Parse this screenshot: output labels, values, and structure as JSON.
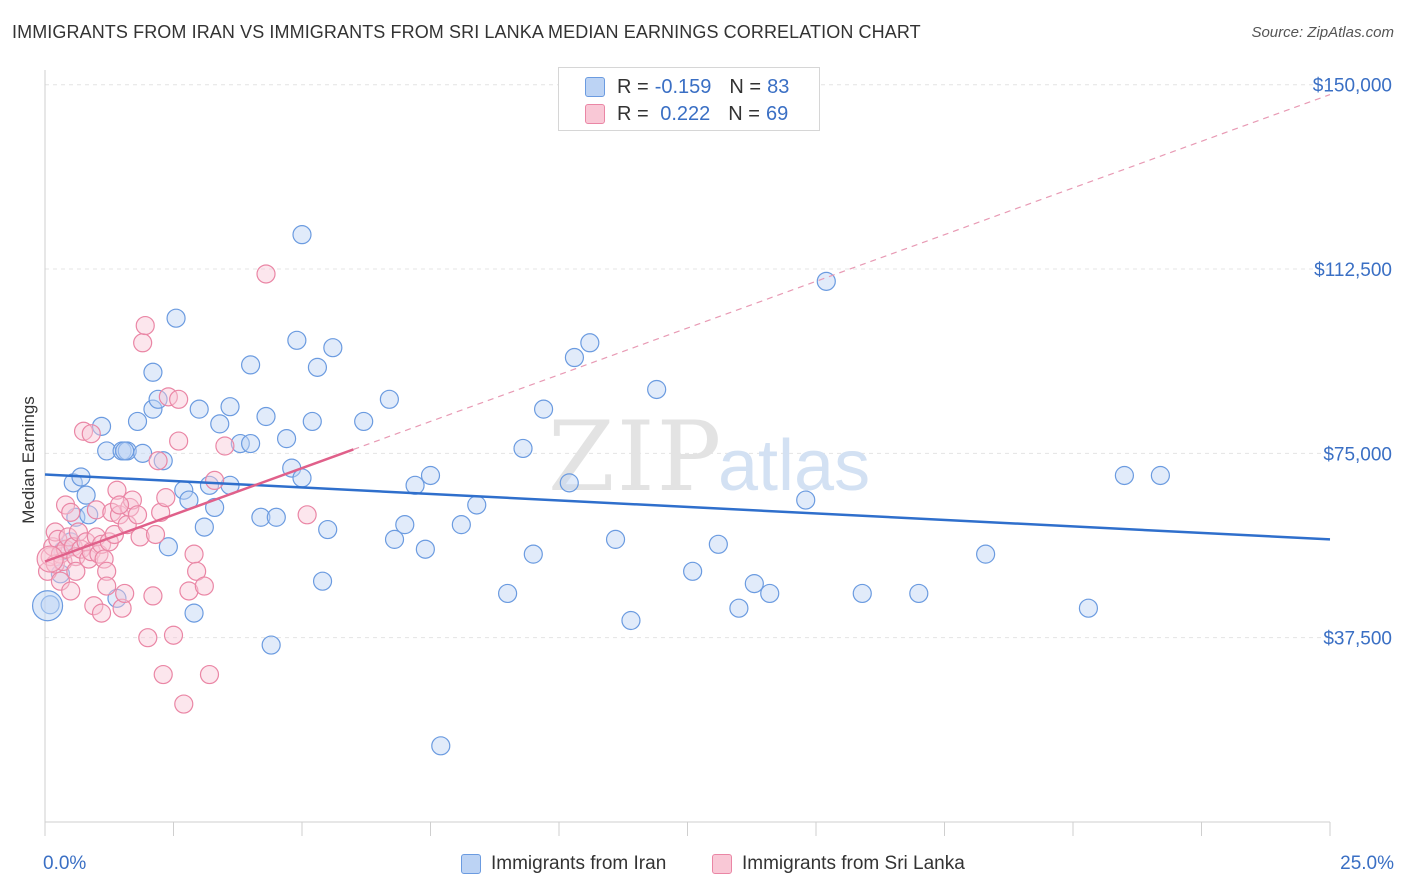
{
  "title": "IMMIGRANTS FROM IRAN VS IMMIGRANTS FROM SRI LANKA MEDIAN EARNINGS CORRELATION CHART",
  "source": "Source: ZipAtlas.com",
  "watermark": {
    "zip": "ZIP",
    "atlas": "atlas"
  },
  "legend": {
    "series": [
      {
        "r_label": "R =",
        "r_value": "-0.159",
        "n_label": "N =",
        "n_value": "83",
        "color": "#6b9be0",
        "fill": "#bcd3f4"
      },
      {
        "r_label": "R =",
        "r_value": " 0.222",
        "n_label": "N =",
        "n_value": "69",
        "color": "#ea86a5",
        "fill": "#f9c8d6"
      }
    ]
  },
  "bottom_legend": [
    "Immigrants from Iran",
    "Immigrants from Sri Lanka"
  ],
  "chart_data": {
    "type": "scatter",
    "title": "IMMIGRANTS FROM IRAN VS IMMIGRANTS FROM SRI LANKA MEDIAN EARNINGS CORRELATION CHART",
    "xlabel": "",
    "ylabel": "Median Earnings",
    "xlim": [
      0,
      25
    ],
    "ylim": [
      0,
      153000
    ],
    "x_tick_labels": [
      "0.0%",
      "25.0%"
    ],
    "y_ticks": [
      37500,
      75000,
      112500,
      150000
    ],
    "y_tick_labels": [
      "$37,500",
      "$75,000",
      "$112,500",
      "$150,000"
    ],
    "grid": true,
    "series": [
      {
        "name": "Immigrants from Iran",
        "color": "#6b9be0",
        "trend": {
          "x": [
            0,
            25
          ],
          "y": [
            70700,
            57500
          ],
          "style": "solid"
        },
        "points": [
          [
            0.1,
            44200
          ],
          [
            0.3,
            50500
          ],
          [
            0.35,
            55200
          ],
          [
            0.5,
            57000
          ],
          [
            0.55,
            69000
          ],
          [
            0.6,
            62000
          ],
          [
            0.7,
            70200
          ],
          [
            0.8,
            66500
          ],
          [
            0.85,
            62500
          ],
          [
            1.1,
            80500
          ],
          [
            1.2,
            75500
          ],
          [
            1.4,
            45500
          ],
          [
            1.5,
            75500
          ],
          [
            1.6,
            75500
          ],
          [
            1.8,
            81500
          ],
          [
            1.9,
            75000
          ],
          [
            2.1,
            84000
          ],
          [
            2.1,
            91500
          ],
          [
            2.2,
            86000
          ],
          [
            2.3,
            73500
          ],
          [
            2.4,
            56000
          ],
          [
            2.55,
            102500
          ],
          [
            2.7,
            67500
          ],
          [
            2.8,
            65500
          ],
          [
            2.9,
            42500
          ],
          [
            3.0,
            84000
          ],
          [
            3.1,
            60000
          ],
          [
            3.2,
            68500
          ],
          [
            3.3,
            64000
          ],
          [
            3.4,
            81000
          ],
          [
            3.6,
            68500
          ],
          [
            3.6,
            84500
          ],
          [
            3.8,
            77000
          ],
          [
            4.0,
            93000
          ],
          [
            4.0,
            77000
          ],
          [
            4.2,
            62000
          ],
          [
            4.3,
            82500
          ],
          [
            4.4,
            36000
          ],
          [
            4.5,
            62000
          ],
          [
            4.7,
            78000
          ],
          [
            4.8,
            72000
          ],
          [
            4.9,
            98000
          ],
          [
            5.0,
            70000
          ],
          [
            5.0,
            119500
          ],
          [
            5.2,
            81500
          ],
          [
            5.3,
            92500
          ],
          [
            5.4,
            49000
          ],
          [
            5.5,
            59500
          ],
          [
            5.6,
            96500
          ],
          [
            6.2,
            81500
          ],
          [
            6.7,
            86000
          ],
          [
            6.8,
            57500
          ],
          [
            7.0,
            60500
          ],
          [
            7.2,
            68500
          ],
          [
            7.4,
            55500
          ],
          [
            7.5,
            70500
          ],
          [
            8.1,
            60500
          ],
          [
            8.4,
            64500
          ],
          [
            9.0,
            46500
          ],
          [
            9.3,
            76000
          ],
          [
            9.5,
            54500
          ],
          [
            9.7,
            84000
          ],
          [
            10.2,
            69000
          ],
          [
            10.3,
            94500
          ],
          [
            10.6,
            97500
          ],
          [
            11.1,
            57500
          ],
          [
            11.4,
            41000
          ],
          [
            11.9,
            88000
          ],
          [
            12.6,
            51000
          ],
          [
            13.1,
            56500
          ],
          [
            13.5,
            43500
          ],
          [
            13.8,
            48500
          ],
          [
            14.1,
            46500
          ],
          [
            14.8,
            65500
          ],
          [
            15.2,
            110000
          ],
          [
            15.9,
            46500
          ],
          [
            17.0,
            46500
          ],
          [
            18.3,
            54500
          ],
          [
            20.3,
            43500
          ],
          [
            21.0,
            70500
          ],
          [
            21.7,
            70500
          ],
          [
            7.7,
            15500
          ],
          [
            1.55,
            75500
          ]
        ]
      },
      {
        "name": "Immigrants from Sri Lanka",
        "color": "#ea86a5",
        "trend": {
          "x": [
            0,
            6.0,
            25
          ],
          "y": [
            53000,
            75800,
            148000
          ],
          "style": "solid-then-dashed"
        },
        "points": [
          [
            0.05,
            51000
          ],
          [
            0.1,
            54000
          ],
          [
            0.15,
            56000
          ],
          [
            0.2,
            52500
          ],
          [
            0.2,
            59000
          ],
          [
            0.25,
            57500
          ],
          [
            0.3,
            54500
          ],
          [
            0.3,
            49000
          ],
          [
            0.35,
            53000
          ],
          [
            0.4,
            55500
          ],
          [
            0.4,
            64500
          ],
          [
            0.45,
            58000
          ],
          [
            0.5,
            63000
          ],
          [
            0.5,
            47000
          ],
          [
            0.55,
            56000
          ],
          [
            0.6,
            54000
          ],
          [
            0.6,
            51000
          ],
          [
            0.65,
            59000
          ],
          [
            0.7,
            55500
          ],
          [
            0.75,
            79500
          ],
          [
            0.8,
            57000
          ],
          [
            0.85,
            53500
          ],
          [
            0.9,
            55000
          ],
          [
            0.9,
            79000
          ],
          [
            0.95,
            44000
          ],
          [
            1.0,
            58000
          ],
          [
            1.0,
            63500
          ],
          [
            1.05,
            54500
          ],
          [
            1.1,
            42500
          ],
          [
            1.1,
            56500
          ],
          [
            1.15,
            53500
          ],
          [
            1.2,
            51000
          ],
          [
            1.2,
            48000
          ],
          [
            1.25,
            57000
          ],
          [
            1.3,
            63000
          ],
          [
            1.35,
            58500
          ],
          [
            1.4,
            67500
          ],
          [
            1.45,
            62500
          ],
          [
            1.5,
            43500
          ],
          [
            1.55,
            46500
          ],
          [
            1.6,
            60500
          ],
          [
            1.65,
            64000
          ],
          [
            1.7,
            65500
          ],
          [
            1.8,
            62500
          ],
          [
            1.85,
            58000
          ],
          [
            1.9,
            97500
          ],
          [
            1.95,
            101000
          ],
          [
            2.0,
            37500
          ],
          [
            2.1,
            46000
          ],
          [
            2.15,
            58500
          ],
          [
            2.2,
            73500
          ],
          [
            2.25,
            63000
          ],
          [
            2.3,
            30000
          ],
          [
            2.35,
            66000
          ],
          [
            2.4,
            86500
          ],
          [
            2.5,
            38000
          ],
          [
            2.6,
            86000
          ],
          [
            2.6,
            77500
          ],
          [
            2.7,
            24000
          ],
          [
            2.8,
            47000
          ],
          [
            2.9,
            54500
          ],
          [
            2.95,
            51000
          ],
          [
            3.1,
            48000
          ],
          [
            3.2,
            30000
          ],
          [
            3.3,
            69500
          ],
          [
            3.5,
            76500
          ],
          [
            4.3,
            111500
          ],
          [
            5.1,
            62500
          ],
          [
            1.45,
            64500
          ]
        ]
      }
    ]
  }
}
